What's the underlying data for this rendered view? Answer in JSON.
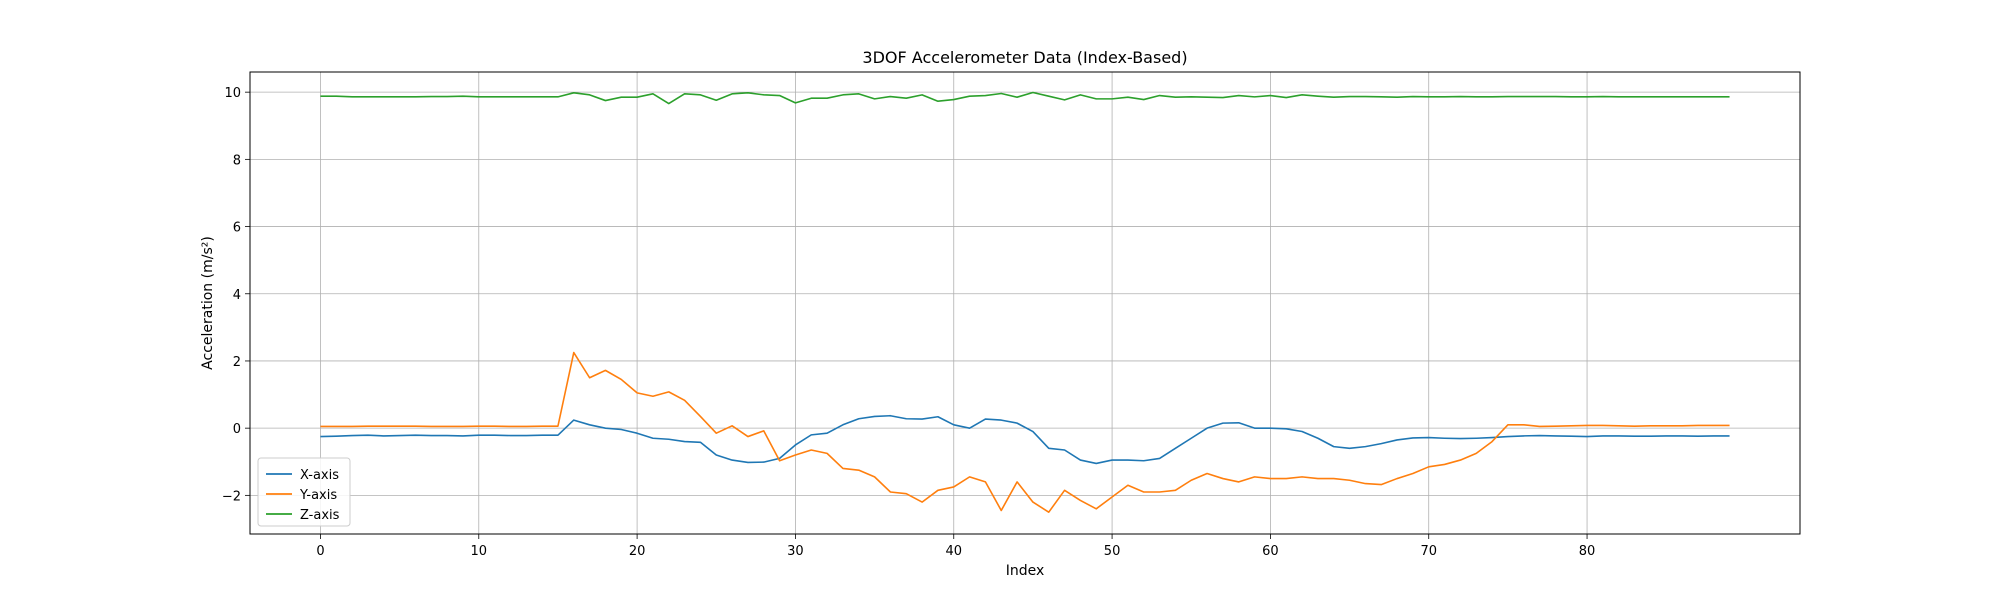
{
  "chart_data": {
    "type": "line",
    "title": "3DOF Accelerometer Data (Index-Based)",
    "xlabel": "Index",
    "ylabel": "Acceleration (m/s²)",
    "xlim": [
      -4.45,
      93.45
    ],
    "ylim": [
      -3.15,
      10.6
    ],
    "xticks": [
      0,
      10,
      20,
      30,
      40,
      50,
      60,
      70,
      80
    ],
    "yticks": [
      -2,
      0,
      2,
      4,
      6,
      8,
      10
    ],
    "xtick_labels": [
      "0",
      "10",
      "20",
      "30",
      "40",
      "50",
      "60",
      "70",
      "80"
    ],
    "ytick_labels": [
      "−2",
      "0",
      "2",
      "4",
      "6",
      "8",
      "10"
    ],
    "grid": true,
    "legend_position": "lower-left",
    "series": [
      {
        "name": "X-axis",
        "color": "#1f77b4",
        "values": [
          -0.25,
          -0.24,
          -0.22,
          -0.21,
          -0.23,
          -0.22,
          -0.21,
          -0.22,
          -0.22,
          -0.23,
          -0.21,
          -0.21,
          -0.22,
          -0.22,
          -0.21,
          -0.21,
          0.24,
          0.1,
          0.0,
          -0.04,
          -0.15,
          -0.3,
          -0.33,
          -0.4,
          -0.42,
          -0.8,
          -0.95,
          -1.02,
          -1.01,
          -0.9,
          -0.5,
          -0.2,
          -0.15,
          0.1,
          0.28,
          0.35,
          0.37,
          0.28,
          0.27,
          0.34,
          0.1,
          0.0,
          0.27,
          0.24,
          0.15,
          -0.1,
          -0.6,
          -0.65,
          -0.95,
          -1.05,
          -0.95,
          -0.95,
          -0.97,
          -0.9,
          -0.6,
          -0.3,
          0.0,
          0.15,
          0.16,
          0.0,
          0.0,
          -0.02,
          -0.1,
          -0.3,
          -0.55,
          -0.6,
          -0.55,
          -0.46,
          -0.35,
          -0.29,
          -0.28,
          -0.3,
          -0.31,
          -0.3,
          -0.28,
          -0.25,
          -0.23,
          -0.22,
          -0.23,
          -0.24,
          -0.25,
          -0.23,
          -0.23,
          -0.24,
          -0.24,
          -0.23,
          -0.23,
          -0.24,
          -0.23,
          -0.23
        ]
      },
      {
        "name": "Y-axis",
        "color": "#ff7f0e",
        "values": [
          0.05,
          0.05,
          0.05,
          0.06,
          0.06,
          0.06,
          0.06,
          0.05,
          0.05,
          0.05,
          0.06,
          0.06,
          0.05,
          0.05,
          0.06,
          0.06,
          2.25,
          1.5,
          1.72,
          1.45,
          1.05,
          0.95,
          1.08,
          0.83,
          0.35,
          -0.15,
          0.07,
          -0.25,
          -0.08,
          -0.97,
          -0.8,
          -0.65,
          -0.75,
          -1.2,
          -1.25,
          -1.45,
          -1.9,
          -1.95,
          -2.2,
          -1.85,
          -1.75,
          -1.45,
          -1.6,
          -2.45,
          -1.6,
          -2.2,
          -2.5,
          -1.85,
          -2.15,
          -2.4,
          -2.05,
          -1.7,
          -1.9,
          -1.9,
          -1.85,
          -1.55,
          -1.35,
          -1.5,
          -1.6,
          -1.45,
          -1.5,
          -1.5,
          -1.45,
          -1.5,
          -1.5,
          -1.55,
          -1.65,
          -1.68,
          -1.5,
          -1.35,
          -1.15,
          -1.08,
          -0.95,
          -0.75,
          -0.4,
          0.1,
          0.1,
          0.05,
          0.06,
          0.07,
          0.08,
          0.08,
          0.07,
          0.06,
          0.07,
          0.07,
          0.07,
          0.08,
          0.08,
          0.08
        ]
      },
      {
        "name": "Z-axis",
        "color": "#2ca02c",
        "values": [
          9.88,
          9.88,
          9.86,
          9.86,
          9.86,
          9.86,
          9.86,
          9.87,
          9.87,
          9.88,
          9.86,
          9.86,
          9.86,
          9.86,
          9.86,
          9.86,
          9.98,
          9.92,
          9.75,
          9.85,
          9.85,
          9.95,
          9.66,
          9.95,
          9.92,
          9.76,
          9.95,
          9.98,
          9.92,
          9.9,
          9.68,
          9.82,
          9.82,
          9.92,
          9.95,
          9.8,
          9.87,
          9.82,
          9.92,
          9.73,
          9.78,
          9.88,
          9.9,
          9.96,
          9.85,
          9.99,
          9.88,
          9.77,
          9.92,
          9.8,
          9.8,
          9.85,
          9.78,
          9.9,
          9.85,
          9.86,
          9.85,
          9.84,
          9.9,
          9.86,
          9.9,
          9.84,
          9.92,
          9.88,
          9.85,
          9.87,
          9.87,
          9.86,
          9.85,
          9.87,
          9.86,
          9.86,
          9.87,
          9.86,
          9.86,
          9.87,
          9.87,
          9.87,
          9.87,
          9.86,
          9.86,
          9.87,
          9.86,
          9.86,
          9.86,
          9.86,
          9.86,
          9.86,
          9.86,
          9.86
        ]
      }
    ]
  }
}
